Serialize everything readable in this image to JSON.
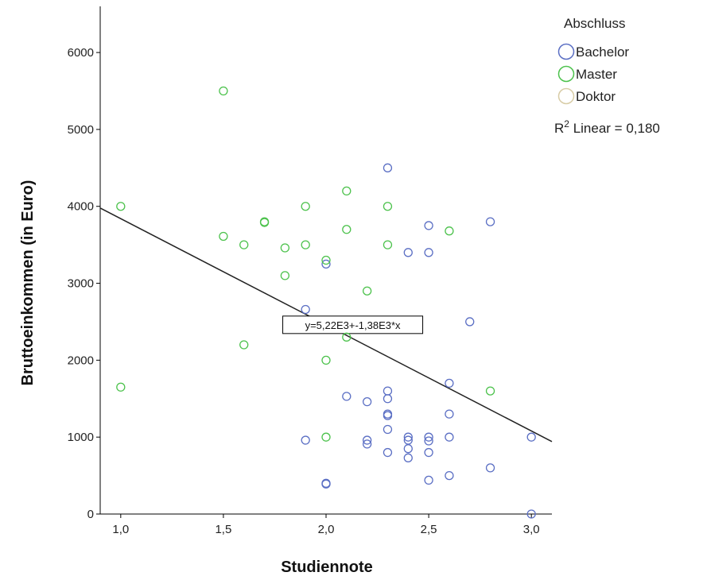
{
  "chart_data": {
    "type": "scatter",
    "xlabel": "Studiennote",
    "ylabel": "Bruttoeinkommen (in Euro)",
    "xlim": [
      0.9,
      3.1
    ],
    "ylim": [
      0,
      6600
    ],
    "x_ticks": [
      1.0,
      1.5,
      2.0,
      2.5,
      3.0
    ],
    "x_tick_labels": [
      "1,0",
      "1,5",
      "2,0",
      "2,5",
      "3,0"
    ],
    "y_ticks": [
      0,
      1000,
      2000,
      3000,
      4000,
      5000,
      6000
    ],
    "y_tick_labels": [
      "0",
      "1000",
      "2000",
      "3000",
      "4000",
      "5000",
      "6000"
    ],
    "grid": false,
    "legend": {
      "title": "Abschluss",
      "placement": "top-right",
      "entries": [
        {
          "name": "Bachelor",
          "color": "#5b6fc4"
        },
        {
          "name": "Master",
          "color": "#4cc24c"
        },
        {
          "name": "Doktor",
          "color": "#d8cca6"
        }
      ],
      "r2_prefix": "R",
      "r2_sup": "2",
      "r2_text": " Linear = 0,180"
    },
    "series": [
      {
        "name": "Bachelor",
        "color": "#5b6fc4",
        "points": [
          [
            1.9,
            2660
          ],
          [
            1.9,
            960
          ],
          [
            2.0,
            3250
          ],
          [
            2.0,
            400
          ],
          [
            2.0,
            390
          ],
          [
            2.1,
            1530
          ],
          [
            2.2,
            1460
          ],
          [
            2.2,
            960
          ],
          [
            2.2,
            910
          ],
          [
            2.3,
            4500
          ],
          [
            2.3,
            1600
          ],
          [
            2.3,
            1500
          ],
          [
            2.3,
            1300
          ],
          [
            2.3,
            1280
          ],
          [
            2.3,
            1100
          ],
          [
            2.3,
            800
          ],
          [
            2.4,
            3400
          ],
          [
            2.4,
            1000
          ],
          [
            2.4,
            960
          ],
          [
            2.4,
            850
          ],
          [
            2.4,
            730
          ],
          [
            2.5,
            3750
          ],
          [
            2.5,
            3400
          ],
          [
            2.5,
            1000
          ],
          [
            2.5,
            950
          ],
          [
            2.5,
            800
          ],
          [
            2.5,
            440
          ],
          [
            2.6,
            1700
          ],
          [
            2.6,
            1300
          ],
          [
            2.6,
            1000
          ],
          [
            2.6,
            500
          ],
          [
            2.7,
            2500
          ],
          [
            2.8,
            3800
          ],
          [
            2.8,
            600
          ],
          [
            3.0,
            1000
          ],
          [
            3.0,
            0
          ]
        ]
      },
      {
        "name": "Master",
        "color": "#4cc24c",
        "points": [
          [
            1.0,
            4000
          ],
          [
            1.0,
            1650
          ],
          [
            1.5,
            5500
          ],
          [
            1.5,
            3610
          ],
          [
            1.6,
            3500
          ],
          [
            1.6,
            2200
          ],
          [
            1.7,
            3800
          ],
          [
            1.7,
            3790
          ],
          [
            1.8,
            3460
          ],
          [
            1.8,
            3100
          ],
          [
            1.9,
            4000
          ],
          [
            1.9,
            3500
          ],
          [
            2.0,
            3300
          ],
          [
            2.0,
            2000
          ],
          [
            2.0,
            1000
          ],
          [
            2.1,
            4200
          ],
          [
            2.1,
            3700
          ],
          [
            2.1,
            2300
          ],
          [
            2.2,
            2900
          ],
          [
            2.3,
            4000
          ],
          [
            2.3,
            3500
          ],
          [
            2.6,
            3680
          ],
          [
            2.8,
            1600
          ]
        ]
      }
    ],
    "fit_line": {
      "intercept": 5220,
      "slope": -1380,
      "label": "y=5,22E3+-1,38E3*x",
      "label_anchor_x": 2.13,
      "label_anchor_y": 2460
    }
  }
}
